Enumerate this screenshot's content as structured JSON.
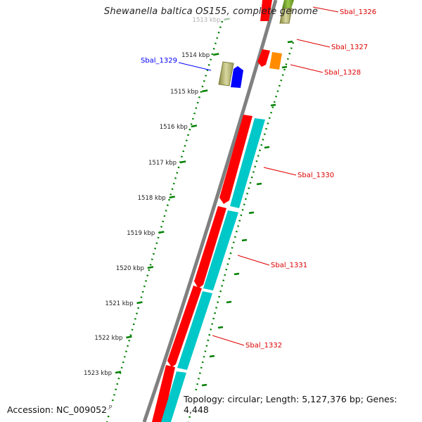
{
  "title": "Shewanella baltica OS155, complete genome",
  "footer": {
    "accession": "Accession: NC_009052",
    "accession_cut": ".P",
    "topology": "Topology: circular; Length: 5,127,376 bp; Genes: 4,448"
  },
  "ticks": [
    {
      "label": "1513 kbp",
      "kbp": 1513
    },
    {
      "label": "1514 kbp",
      "kbp": 1514
    },
    {
      "label": "1515 kbp",
      "kbp": 1515
    },
    {
      "label": "1516 kbp",
      "kbp": 1516
    },
    {
      "label": "1517 kbp",
      "kbp": 1517
    },
    {
      "label": "1518 kbp",
      "kbp": 1518
    },
    {
      "label": "1519 kbp",
      "kbp": 1519
    },
    {
      "label": "1520 kbp",
      "kbp": 1520
    },
    {
      "label": "1521 kbp",
      "kbp": 1521
    },
    {
      "label": "1522 kbp",
      "kbp": 1522
    },
    {
      "label": "1523 kbp",
      "kbp": 1523
    }
  ],
  "genes": [
    {
      "label": "Sbal_1326",
      "strand": "+",
      "color": "#ff0000",
      "highlight": false
    },
    {
      "label": "Sbal_1327",
      "strand": "+",
      "color": "#ff0000",
      "highlight": false
    },
    {
      "label": "Sbal_1328",
      "strand": "-",
      "color": "#ff8c00",
      "highlight": false
    },
    {
      "label": "Sbal_1329",
      "strand": "-",
      "color": "#0000ff",
      "highlight": true
    },
    {
      "label": "Sbal_1330",
      "strand": "+",
      "color": "#ff0000",
      "highlight": false
    },
    {
      "label": "Sbal_1331",
      "strand": "+",
      "color": "#ff0000",
      "highlight": false
    },
    {
      "label": "Sbal_1332",
      "strand": "+",
      "color": "#ff0000",
      "highlight": false
    }
  ],
  "colors": {
    "cds": "#ff0000",
    "orf_strand": "#00c8c8",
    "highlight": "#0000ff",
    "label": "#dd0000",
    "gc_skew": "#008000",
    "backbone": "#808080"
  }
}
